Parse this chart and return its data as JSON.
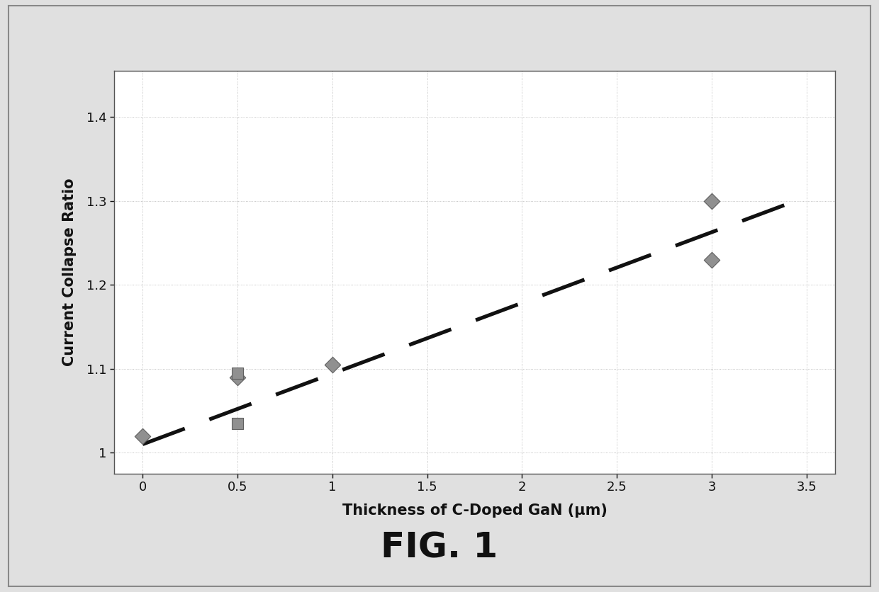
{
  "diamond_points_x": [
    0,
    0.5,
    1,
    3,
    3
  ],
  "diamond_points_y": [
    1.02,
    1.09,
    1.105,
    1.3,
    1.23
  ],
  "square_points_x": [
    0.5,
    0.5
  ],
  "square_points_y": [
    1.095,
    1.035
  ],
  "trendline_x": [
    0,
    3.5
  ],
  "trendline_y": [
    1.01,
    1.305
  ],
  "xlabel": "Thickness of C-Doped GaN (μm)",
  "ylabel": "Current Collapse Ratio",
  "fig_label": "FIG. 1",
  "xlim": [
    -0.15,
    3.65
  ],
  "ylim": [
    0.975,
    1.455
  ],
  "xticks": [
    0,
    0.5,
    1,
    1.5,
    2,
    2.5,
    3,
    3.5
  ],
  "yticks": [
    1.0,
    1.1,
    1.2,
    1.3,
    1.4
  ],
  "ytick_labels": [
    "1",
    "1.1",
    "1.2",
    "1.3",
    "1.4"
  ],
  "xtick_labels": [
    "0",
    "0.5",
    "1",
    "1.5",
    "2",
    "2.5",
    "3",
    "3.5"
  ],
  "grid_color": "#aaaaaa",
  "marker_color": "#909090",
  "marker_edge_color": "#606060",
  "trendline_color": "#111111",
  "plot_bg_color": "#ffffff",
  "outer_bg_color": "#d8d8d8",
  "fig_bg_color": "#e0e0e0",
  "border_color": "#888888",
  "axis_color": "#555555",
  "text_color": "#111111"
}
